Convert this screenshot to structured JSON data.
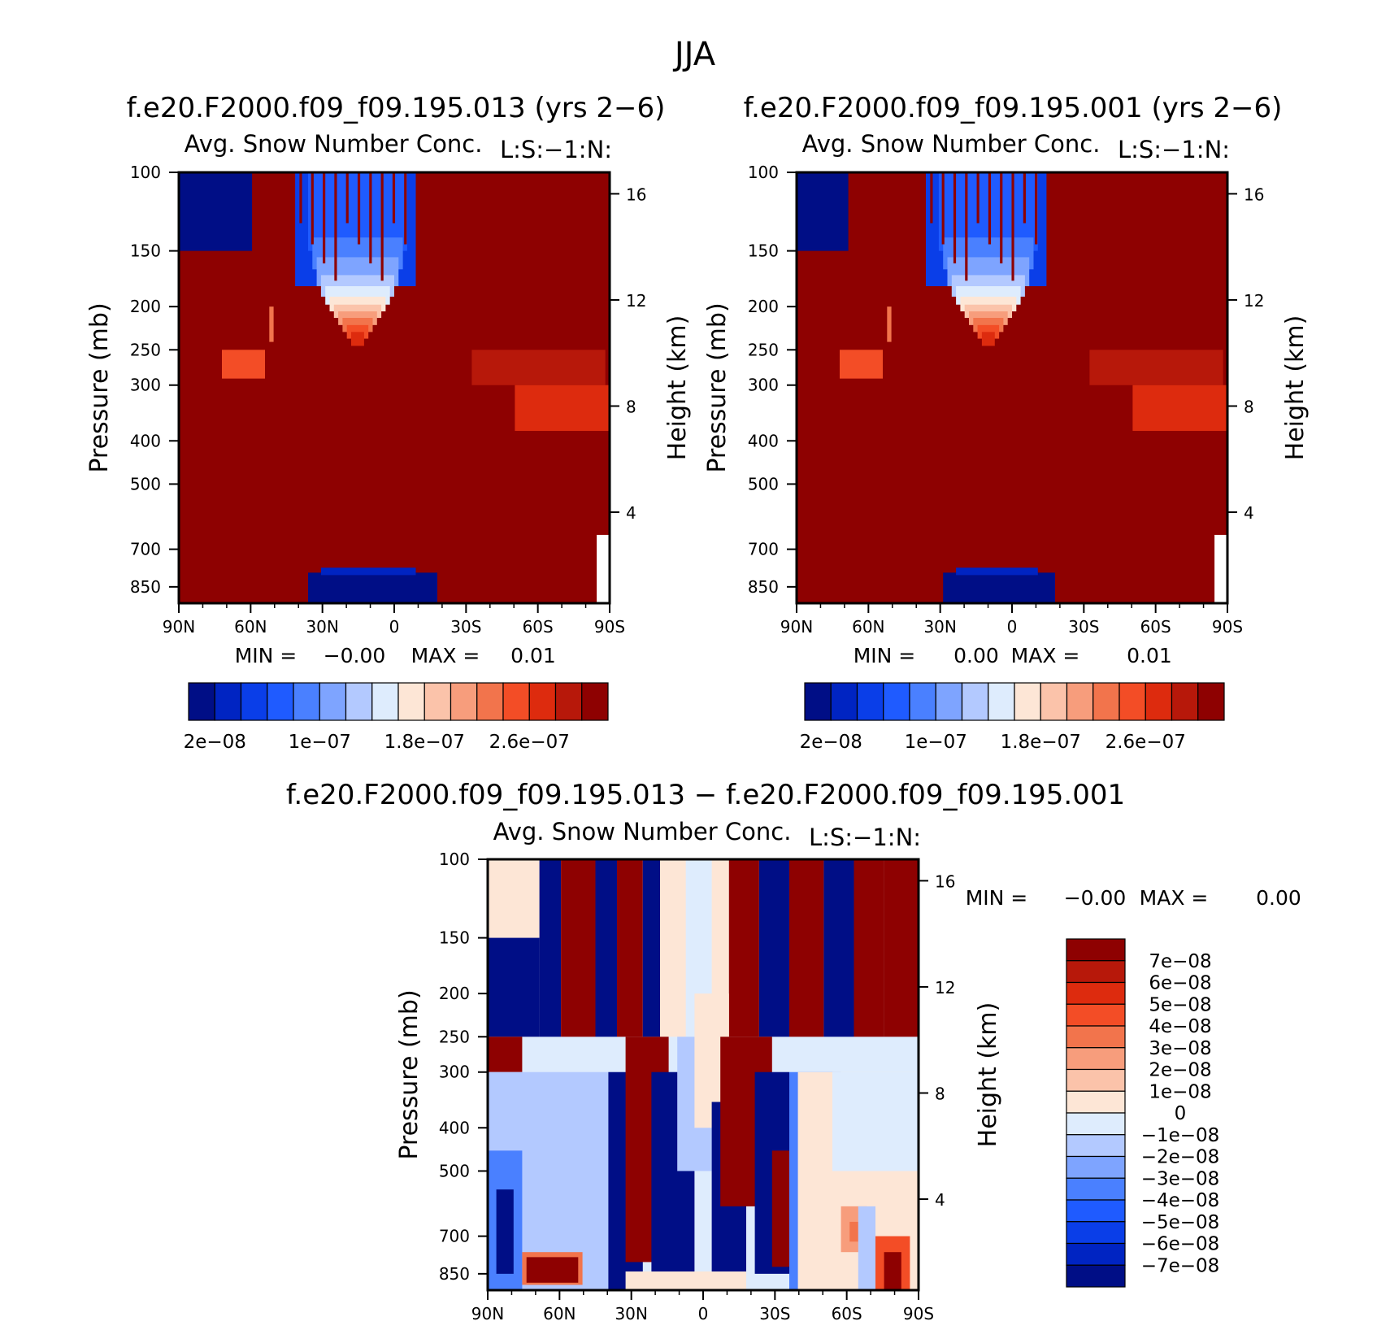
{
  "figure_title": "JJA",
  "colors": {
    "seq13": [
      "#000e86",
      "#0024c2",
      "#0a3ee8",
      "#1f5bff",
      "#4a80ff",
      "#7ea4ff",
      "#b3c9ff",
      "#deecfd",
      "#fde6d6",
      "#fbc3aa",
      "#f79d7c",
      "#f2744c",
      "#f34d26",
      "#dd2b0e",
      "#b7180a",
      "#8e0101"
    ],
    "div15": [
      "#000e86",
      "#0024c2",
      "#0a3ee8",
      "#1f5bff",
      "#4a80ff",
      "#7ea4ff",
      "#b3c9ff",
      "#deecfd",
      "#fde6d6",
      "#fbc3aa",
      "#f79d7c",
      "#f2744c",
      "#f34d26",
      "#dd2b0e",
      "#b7180a",
      "#8e0101"
    ]
  },
  "chart_data": [
    {
      "type": "heatmap",
      "panel": "top-left",
      "title": "f.e20.F2000.f09_f09.195.013 (yrs 2−6)",
      "subtitle": "Avg. Snow Number Conc.",
      "level_tag": "L:S:−1:N:",
      "xlabel": "",
      "ylabel": "Pressure (mb)",
      "ylabel_right": "Height (km)",
      "x_ticks": [
        "90N",
        "60N",
        "30N",
        "0",
        "30S",
        "60S",
        "90S"
      ],
      "y_ticks": [
        "100",
        "150",
        "200",
        "250",
        "300",
        "400",
        "500",
        "700",
        "850"
      ],
      "y_ticks_right": [
        "16",
        "12",
        "8",
        "4"
      ],
      "min_label": "MIN =",
      "min_value": "−0.00",
      "max_label": "MAX =",
      "max_value": "0.01",
      "colorbar_labels": [
        "2e−08",
        "1e−07",
        "1.8e−07",
        "2.6e−07"
      ],
      "colorbar_levels": [
        2e-08,
        4e-08,
        6e-08,
        8e-08,
        1e-07,
        1.2e-07,
        1.4e-07,
        1.6e-07,
        1.8e-07,
        2e-07,
        2.2e-07,
        2.4e-07,
        2.6e-07,
        2.8e-07,
        3e-07
      ]
    },
    {
      "type": "heatmap",
      "panel": "top-right",
      "title": "f.e20.F2000.f09_f09.195.001 (yrs 2−6)",
      "subtitle": "Avg. Snow Number Conc.",
      "level_tag": "L:S:−1:N:",
      "xlabel": "",
      "ylabel": "Pressure (mb)",
      "ylabel_right": "Height (km)",
      "x_ticks": [
        "90N",
        "60N",
        "30N",
        "0",
        "30S",
        "60S",
        "90S"
      ],
      "y_ticks": [
        "100",
        "150",
        "200",
        "250",
        "300",
        "400",
        "500",
        "700",
        "850"
      ],
      "y_ticks_right": [
        "16",
        "12",
        "8",
        "4"
      ],
      "min_label": "MIN =",
      "min_value": "0.00",
      "max_label": "MAX =",
      "max_value": "0.01",
      "colorbar_labels": [
        "2e−08",
        "1e−07",
        "1.8e−07",
        "2.6e−07"
      ],
      "colorbar_levels": [
        2e-08,
        4e-08,
        6e-08,
        8e-08,
        1e-07,
        1.2e-07,
        1.4e-07,
        1.6e-07,
        1.8e-07,
        2e-07,
        2.2e-07,
        2.4e-07,
        2.6e-07,
        2.8e-07,
        3e-07
      ]
    },
    {
      "type": "heatmap",
      "panel": "bottom",
      "title": "f.e20.F2000.f09_f09.195.013 − f.e20.F2000.f09_f09.195.001",
      "subtitle": "Avg. Snow Number Conc.",
      "level_tag": "L:S:−1:N:",
      "xlabel": "",
      "ylabel": "Pressure (mb)",
      "ylabel_right": "Height (km)",
      "x_ticks": [
        "90N",
        "60N",
        "30N",
        "0",
        "30S",
        "60S",
        "90S"
      ],
      "y_ticks": [
        "100",
        "150",
        "200",
        "250",
        "300",
        "400",
        "500",
        "700",
        "850"
      ],
      "y_ticks_right": [
        "16",
        "12",
        "8",
        "4"
      ],
      "min_label": "MIN =",
      "min_value": "−0.00",
      "max_label": "MAX =",
      "max_value": "0.00",
      "colorbar_labels": [
        "7e−08",
        "6e−08",
        "5e−08",
        "4e−08",
        "3e−08",
        "2e−08",
        "1e−08",
        "0",
        "−1e−08",
        "−2e−08",
        "−3e−08",
        "−4e−08",
        "−5e−08",
        "−6e−08",
        "−7e−08"
      ],
      "colorbar_levels": [
        7e-08,
        6e-08,
        5e-08,
        4e-08,
        3e-08,
        2e-08,
        1e-08,
        0,
        -1e-08,
        -2e-08,
        -3e-08,
        -4e-08,
        -5e-08,
        -6e-08,
        -7e-08
      ]
    }
  ]
}
